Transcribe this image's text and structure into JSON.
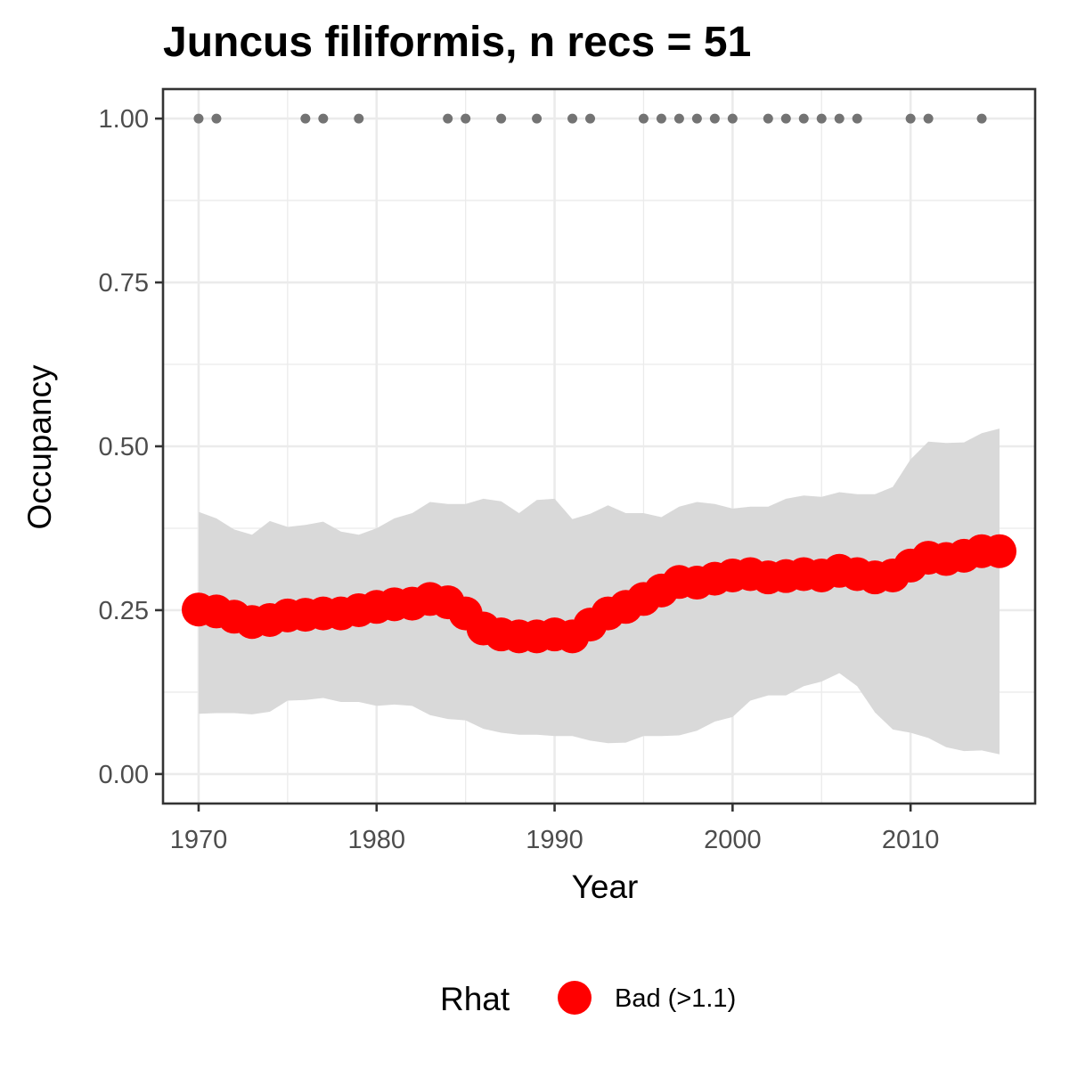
{
  "chart_data": {
    "type": "line",
    "title": "Juncus filiformis, n recs = 51",
    "xlabel": "Year",
    "ylabel": "Occupancy",
    "xlim": [
      1968,
      2017
    ],
    "ylim": [
      -0.045,
      1.045
    ],
    "x_ticks": [
      1970,
      1980,
      1990,
      2000,
      2010
    ],
    "x_tick_labels": [
      "1970",
      "1980",
      "1990",
      "2000",
      "2010"
    ],
    "y_ticks": [
      0,
      0.25,
      0.5,
      0.75,
      1.0
    ],
    "y_tick_labels": [
      "0.00",
      "0.25",
      "0.50",
      "0.75",
      "1.00"
    ],
    "grid": true,
    "legend": {
      "title": "Rhat",
      "position": "bottom",
      "entries": [
        {
          "label": "Bad (>1.1)",
          "color": "#ff0000"
        }
      ]
    },
    "colors": {
      "estimate": "#ff0000",
      "ribbon": "#d9d9d9",
      "records": "#737373",
      "grid": "#ebebeb",
      "panel_border": "#333333"
    },
    "series": [
      {
        "x": [
          1970,
          1971,
          1972,
          1973,
          1974,
          1975,
          1976,
          1977,
          1978,
          1979,
          1980,
          1981,
          1982,
          1983,
          1984,
          1985,
          1986,
          1987,
          1988,
          1989,
          1990,
          1991,
          1992,
          1993,
          1994,
          1995,
          1996,
          1997,
          1998,
          1999,
          2000,
          2001,
          2002,
          2003,
          2004,
          2005,
          2006,
          2007,
          2008,
          2009,
          2010,
          2011,
          2012,
          2013,
          2014,
          2015
        ],
        "values": [
          0.251,
          0.248,
          0.24,
          0.232,
          0.235,
          0.242,
          0.243,
          0.245,
          0.245,
          0.25,
          0.255,
          0.259,
          0.26,
          0.267,
          0.262,
          0.245,
          0.222,
          0.213,
          0.21,
          0.21,
          0.213,
          0.21,
          0.228,
          0.245,
          0.255,
          0.267,
          0.28,
          0.293,
          0.292,
          0.298,
          0.303,
          0.305,
          0.3,
          0.302,
          0.305,
          0.303,
          0.31,
          0.305,
          0.3,
          0.303,
          0.318,
          0.33,
          0.328,
          0.333,
          0.34,
          0.34
        ],
        "lower": [
          0.092,
          0.093,
          0.093,
          0.091,
          0.095,
          0.112,
          0.113,
          0.116,
          0.11,
          0.11,
          0.104,
          0.106,
          0.104,
          0.09,
          0.084,
          0.082,
          0.069,
          0.063,
          0.06,
          0.06,
          0.058,
          0.058,
          0.051,
          0.047,
          0.048,
          0.058,
          0.058,
          0.059,
          0.066,
          0.08,
          0.087,
          0.112,
          0.12,
          0.12,
          0.134,
          0.141,
          0.154,
          0.134,
          0.094,
          0.068,
          0.063,
          0.055,
          0.041,
          0.035,
          0.036,
          0.03
        ],
        "upper": [
          0.4,
          0.39,
          0.373,
          0.365,
          0.386,
          0.377,
          0.38,
          0.385,
          0.37,
          0.365,
          0.375,
          0.39,
          0.398,
          0.415,
          0.412,
          0.412,
          0.42,
          0.416,
          0.398,
          0.418,
          0.42,
          0.389,
          0.397,
          0.41,
          0.398,
          0.398,
          0.392,
          0.408,
          0.415,
          0.412,
          0.405,
          0.408,
          0.408,
          0.42,
          0.425,
          0.423,
          0.43,
          0.427,
          0.427,
          0.438,
          0.48,
          0.507,
          0.505,
          0.506,
          0.52,
          0.527
        ]
      }
    ],
    "records": {
      "y": 1.0,
      "x": [
        1970,
        1971,
        1976,
        1977,
        1979,
        1984,
        1985,
        1987,
        1989,
        1991,
        1992,
        1995,
        1996,
        1997,
        1998,
        1999,
        2000,
        2002,
        2003,
        2004,
        2005,
        2006,
        2007,
        2010,
        2011,
        2014
      ]
    }
  }
}
